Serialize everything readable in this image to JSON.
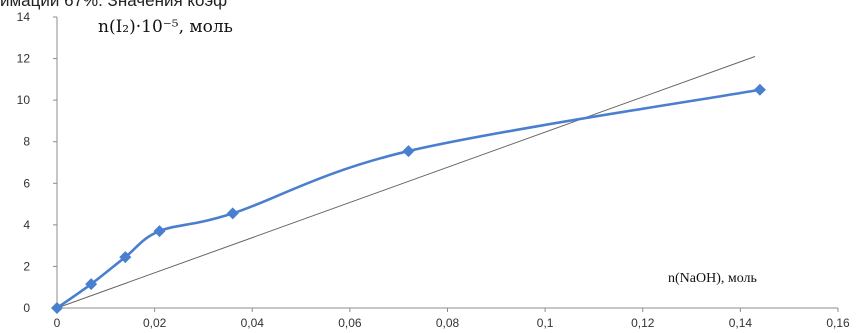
{
  "header_fragment": "имации 67%. Значения коэф",
  "chart_data": {
    "type": "line",
    "title": "",
    "ylabel": "n(I₂)·10⁻⁵, моль",
    "xlabel": "n(NaOH), моль",
    "xlim": [
      0,
      0.16
    ],
    "ylim": [
      0,
      14
    ],
    "x_ticks": [
      "0",
      "0,02",
      "0,04",
      "0,06",
      "0,08",
      "0,1",
      "0,12",
      "0,14",
      "0,16"
    ],
    "y_ticks": [
      "0",
      "2",
      "4",
      "6",
      "8",
      "10",
      "12",
      "14"
    ],
    "grid": false,
    "legend": "none",
    "series": [
      {
        "type": "line-smooth",
        "color": "#4a7fcf",
        "marker": "diamond",
        "x": [
          0,
          0.007,
          0.014,
          0.021,
          0.036,
          0.072,
          0.144
        ],
        "y": [
          0,
          1.15,
          2.45,
          3.7,
          4.55,
          7.55,
          10.5
        ]
      },
      {
        "type": "line",
        "color": "#666666",
        "x": [
          0,
          0.143
        ],
        "y": [
          0,
          12.1
        ]
      }
    ]
  }
}
